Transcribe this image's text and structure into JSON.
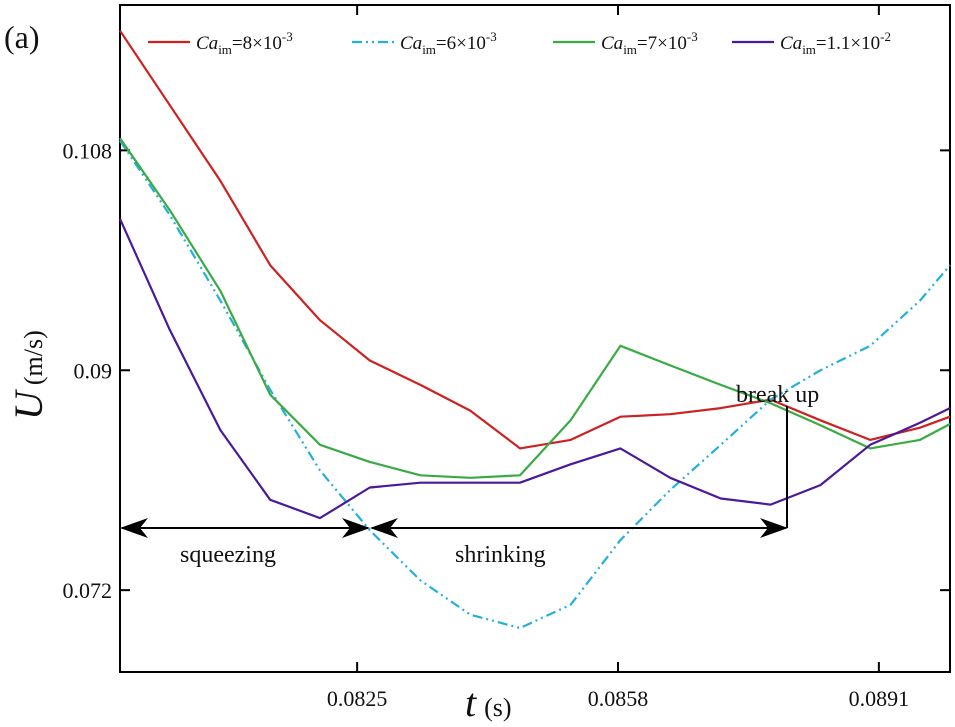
{
  "chart_data": {
    "type": "line",
    "panel_label": "(a)",
    "x_label": [
      "t",
      "(s)"
    ],
    "y_label": [
      "U",
      "(m/s)"
    ],
    "annotations": [
      "break up",
      "squeezing",
      "shrinking"
    ],
    "x": [
      0.0795,
      0.08013,
      0.08077,
      0.0814,
      0.08203,
      0.08266,
      0.0833,
      0.08393,
      0.08456,
      0.0852,
      0.08583,
      0.08646,
      0.0871,
      0.08773,
      0.08836,
      0.08899,
      0.08962,
      0.09
    ],
    "series": [
      {
        "name": [
          "Ca",
          "im",
          "=8×10",
          "-3"
        ],
        "color": "#cc2222",
        "style": "solid",
        "values": [
          0.1178,
          0.1117,
          0.1055,
          0.0986,
          0.0941,
          0.0908,
          0.0888,
          0.0867,
          0.0836,
          0.0843,
          0.0862,
          0.0864,
          0.0869,
          0.0876,
          0.0859,
          0.0843,
          0.0853,
          0.0862
        ]
      },
      {
        "name": [
          "Ca",
          "im",
          "=6×10",
          "-3"
        ],
        "color": "#22b0dd",
        "style": "dashdotdot",
        "values": [
          0.1088,
          0.1027,
          0.0957,
          0.0884,
          0.0818,
          0.0769,
          0.0728,
          0.07,
          0.0689,
          0.0708,
          0.0761,
          0.0802,
          0.0839,
          0.0876,
          0.09,
          0.092,
          0.0957,
          0.0986
        ]
      },
      {
        "name": [
          "Ca",
          "im",
          "=7×10",
          "-3"
        ],
        "color": "#3aaa44",
        "style": "solid",
        "values": [
          0.109,
          0.1031,
          0.0965,
          0.088,
          0.0839,
          0.0825,
          0.0814,
          0.0812,
          0.0814,
          0.0859,
          0.092,
          0.0904,
          0.0888,
          0.0873,
          0.0855,
          0.0836,
          0.0843,
          0.0856
        ]
      },
      {
        "name": [
          "Ca",
          "im",
          "=1.1×10",
          "-2"
        ],
        "color": "#4a1a9a",
        "style": "solid",
        "values": [
          0.1024,
          0.0933,
          0.0851,
          0.0794,
          0.0779,
          0.0804,
          0.0808,
          0.0808,
          0.0808,
          0.0823,
          0.0836,
          0.0812,
          0.0795,
          0.079,
          0.0806,
          0.0839,
          0.0857,
          0.0869
        ]
      }
    ],
    "xlim": [
      0.0795,
      0.09
    ],
    "ylim": [
      0.0653,
      0.1199
    ],
    "xticks": [
      0.0825,
      0.0858,
      0.0891
    ],
    "yticks": [
      0.072,
      0.09,
      0.108
    ]
  }
}
